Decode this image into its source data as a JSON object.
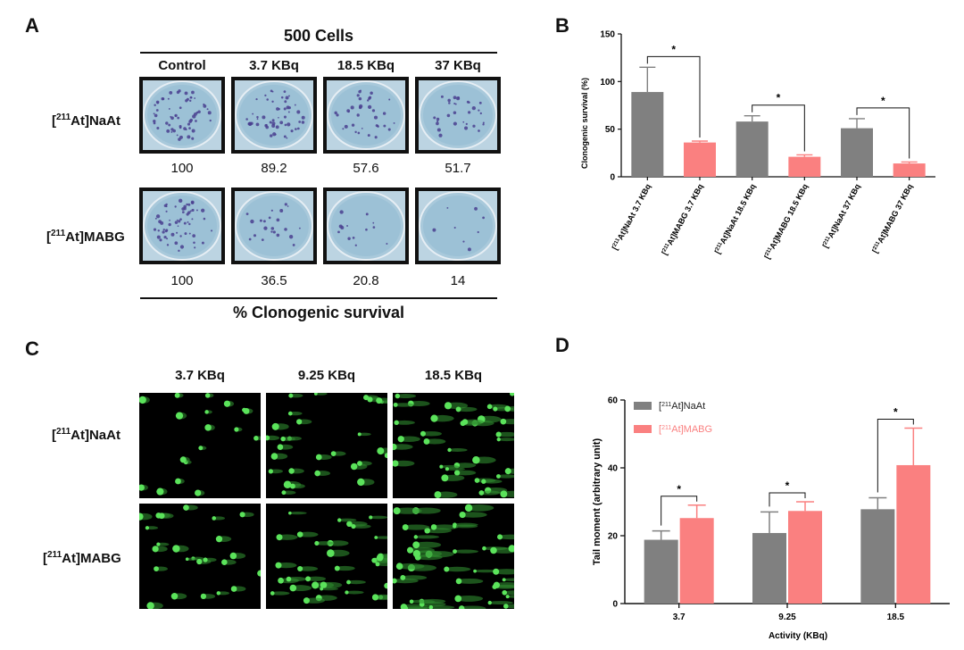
{
  "panels": {
    "a": "A",
    "b": "B",
    "c": "C",
    "d": "D"
  },
  "panel_a": {
    "title": "500 Cells",
    "columns": [
      "Control",
      "3.7 KBq",
      "18.5 KBq",
      "37 KBq"
    ],
    "rows": [
      {
        "pre": "[",
        "sup": "211",
        "post": "At]NaAt",
        "values": [
          "100",
          "89.2",
          "57.6",
          "51.7"
        ],
        "colony_density": [
          1.0,
          0.89,
          0.58,
          0.52
        ]
      },
      {
        "pre": "[",
        "sup": "211",
        "post": "At]MABG",
        "values": [
          "100",
          "36.5",
          "20.8",
          "14"
        ],
        "colony_density": [
          1.0,
          0.37,
          0.21,
          0.14
        ]
      }
    ],
    "footer": "% Clonogenic survival"
  },
  "panel_c": {
    "columns": [
      "3.7 KBq",
      "9.25 KBq",
      "18.5 KBq"
    ],
    "rows": [
      {
        "pre": "[",
        "sup": "211",
        "post": "At]NaAt"
      },
      {
        "pre": "[",
        "sup": "211",
        "post": "At]MABG"
      }
    ]
  },
  "chart_data": [
    {
      "type": "bar",
      "categories": [
        "[211At]NaAt 3.7 KBq",
        "[211At]MABG 3.7 KBq",
        "[211At]NaAt 18.5 KBq",
        "[211At]MABG 18.5 KBq",
        "[211At]NaAt 37 KBq",
        "[211At]MABG 37 KBq"
      ],
      "values": [
        89,
        36,
        58,
        21,
        51,
        14
      ],
      "errors": [
        26,
        1.5,
        6,
        2,
        10,
        1.5
      ],
      "colors": [
        "#808080",
        "#fa8080",
        "#808080",
        "#fa8080",
        "#808080",
        "#fa8080"
      ],
      "ylabel": "Clonogenic survival (%)",
      "ylim": [
        0,
        150
      ],
      "yticks": [
        "0",
        "50",
        "100",
        "150"
      ],
      "significance": [
        "*",
        "*",
        "*"
      ],
      "grid": false
    },
    {
      "type": "bar",
      "categories": [
        "3.7",
        "9.25",
        "18.5"
      ],
      "series": [
        {
          "name": "[211At]NaAt",
          "values": [
            18.8,
            20.8,
            27.8
          ],
          "errors": [
            2.6,
            6.2,
            3.4
          ],
          "color": "#808080"
        },
        {
          "name": "[211At]MABG",
          "values": [
            25.2,
            27.3,
            40.8
          ],
          "errors": [
            3.8,
            2.7,
            10.9
          ],
          "color": "#fa8080"
        }
      ],
      "xlabel": "Activity (KBq)",
      "ylabel": "Tail moment (arbitrary unit)",
      "ylim": [
        0,
        60
      ],
      "yticks": [
        "0",
        "20",
        "40",
        "60"
      ],
      "legend": {
        "placement": "top-left",
        "entries": [
          {
            "pre": "[",
            "sup": "211",
            "post": "At]NaAt",
            "color": "#808080",
            "text_color": "#222222"
          },
          {
            "pre": "[",
            "sup": "211",
            "post": "At]MABG",
            "color": "#fa8080",
            "text_color": "#fa8080"
          }
        ]
      },
      "significance": [
        "*",
        "*",
        "*"
      ],
      "grid": false
    }
  ]
}
